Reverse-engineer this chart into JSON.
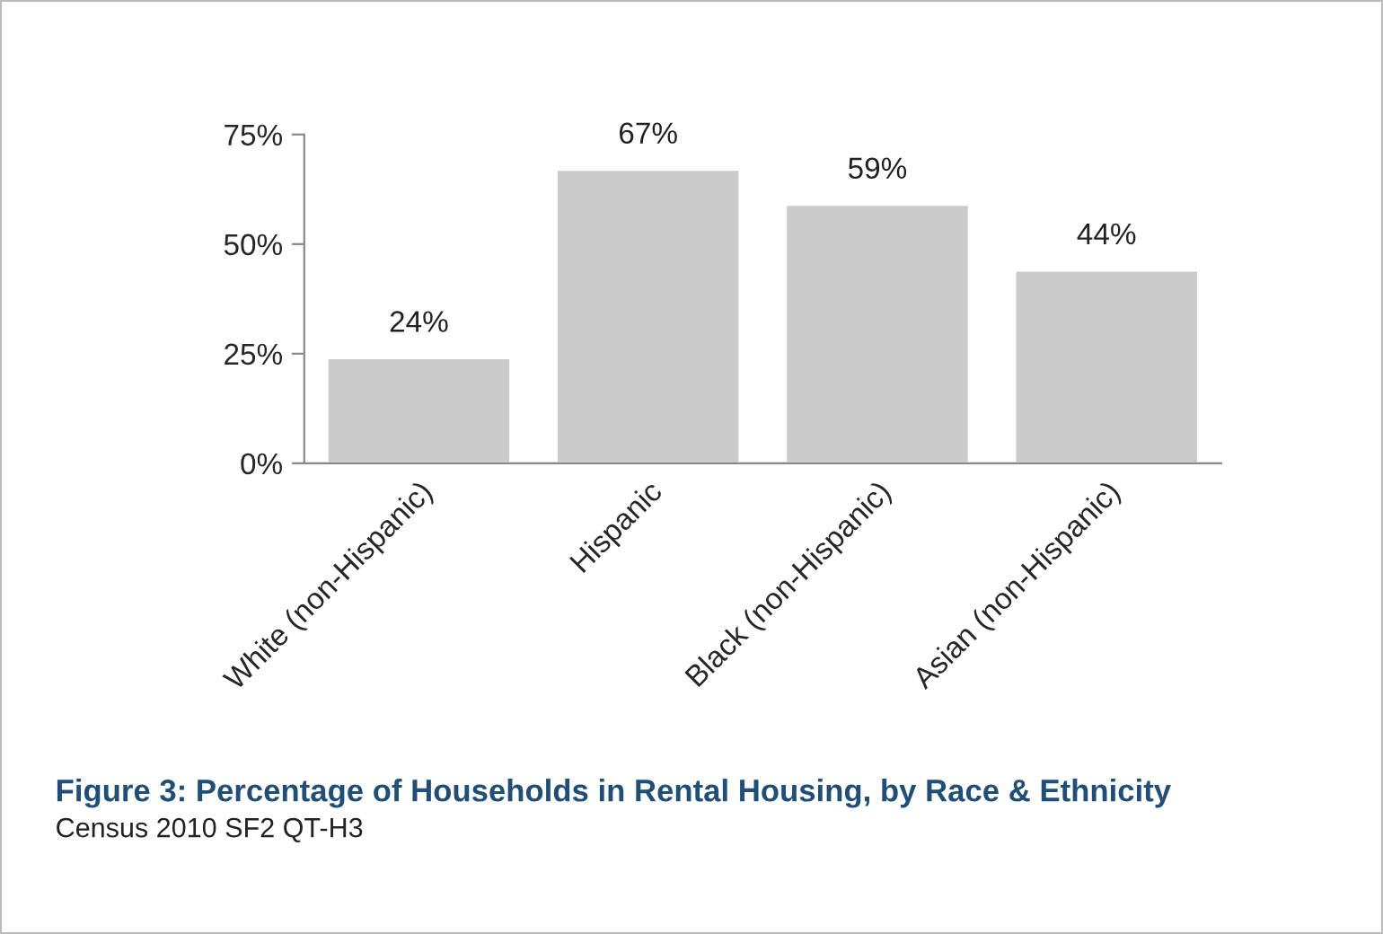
{
  "chart_data": {
    "type": "bar",
    "title": "Figure 3: Percentage of Households in Rental Housing, by Race & Ethnicity",
    "annotations": [
      "Census 2010 SF2 QT-H3"
    ],
    "categories": [
      "White (non-Hispanic)",
      "Hispanic",
      "Black (non-Hispanic)",
      "Asian (non-Hispanic)"
    ],
    "values": [
      24,
      67,
      59,
      44
    ],
    "value_labels": [
      "24%",
      "67%",
      "59%",
      "44%"
    ],
    "color": "#cacaca",
    "ylim": [
      0,
      75
    ],
    "yticks": [
      {
        "value": 0,
        "label": "0%"
      },
      {
        "value": 25,
        "label": "25%"
      },
      {
        "value": 50,
        "label": "50%"
      },
      {
        "value": 75,
        "label": "75%"
      }
    ],
    "grid": false
  }
}
